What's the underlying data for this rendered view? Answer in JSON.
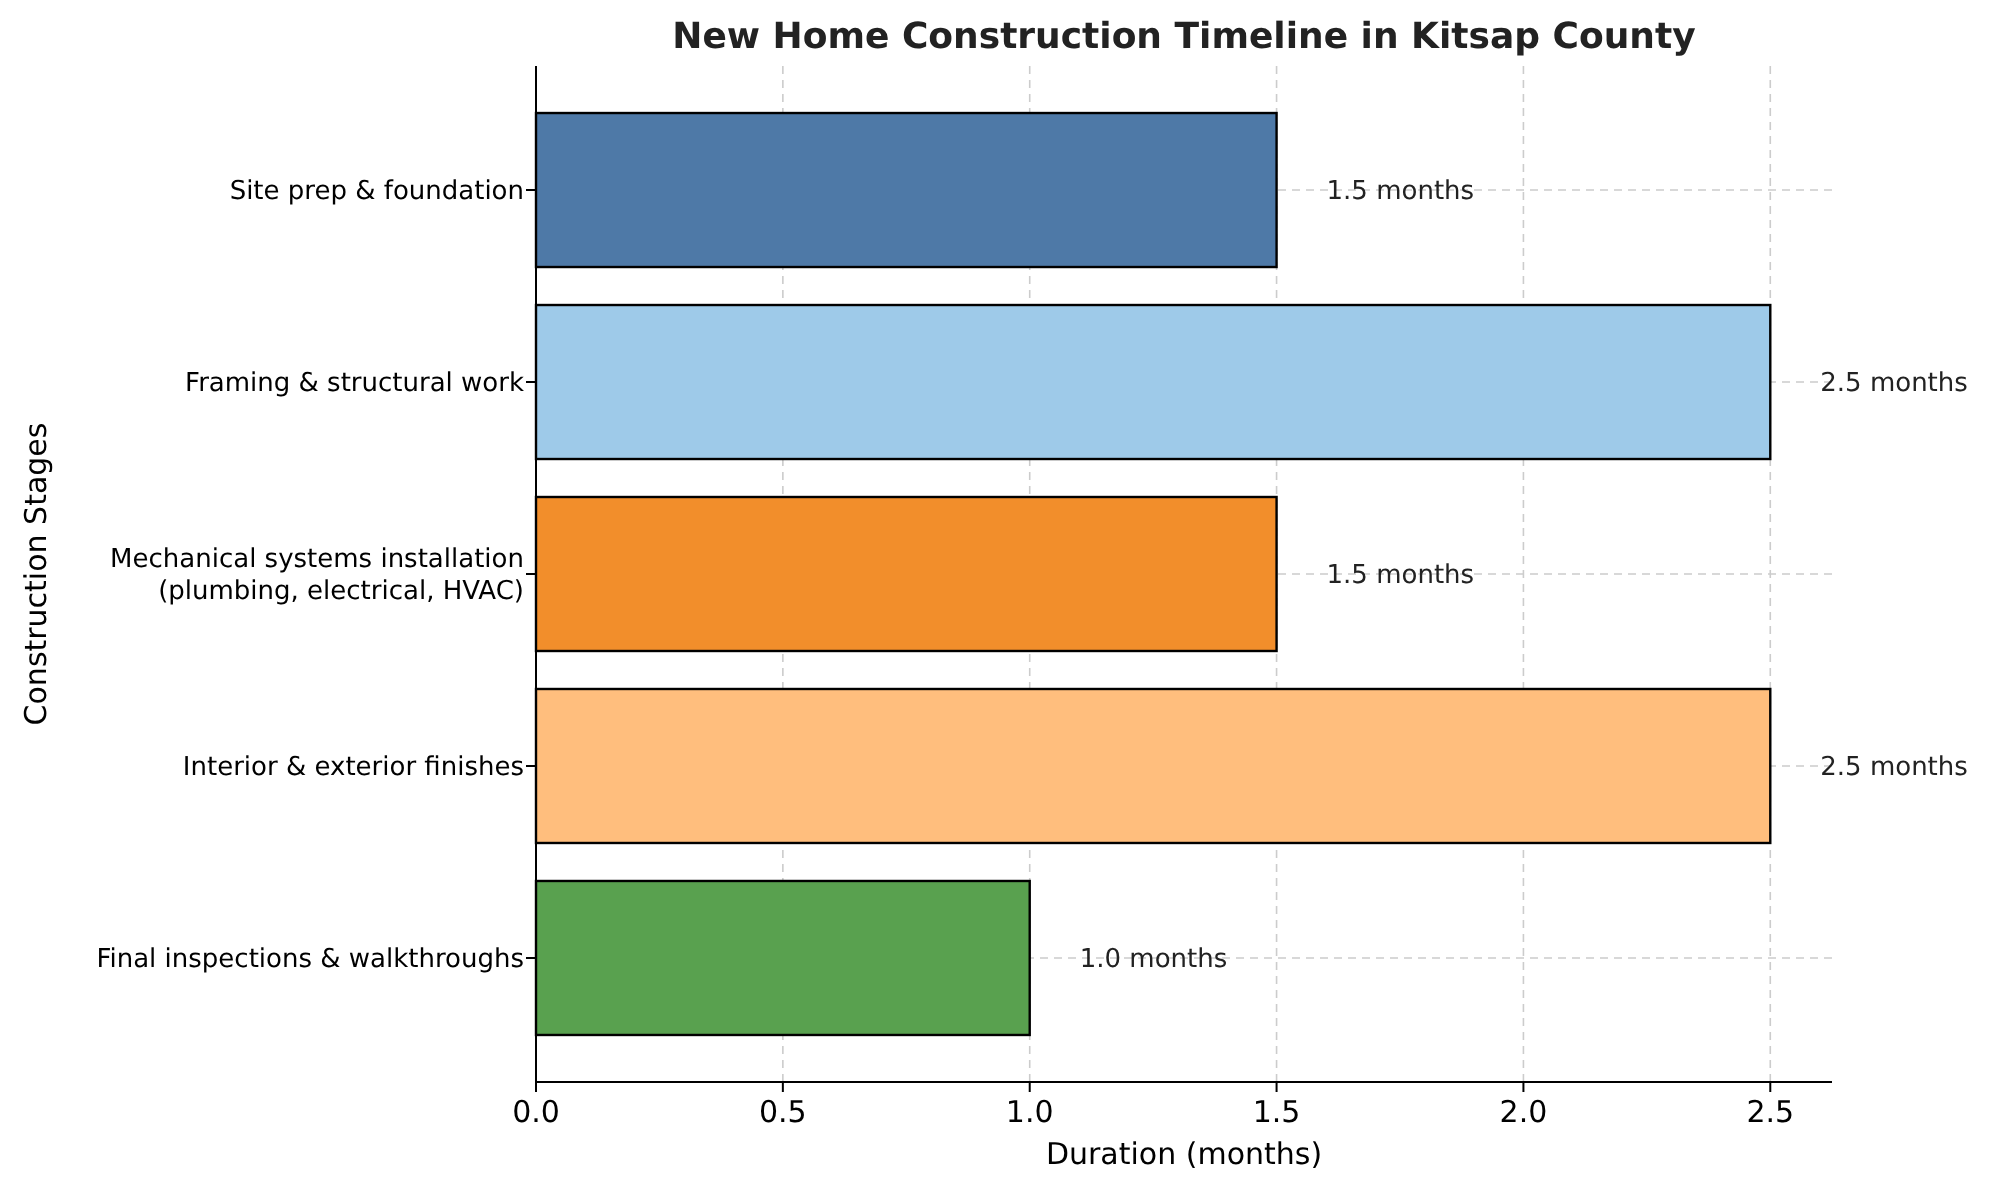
{
  "chart_data": {
    "type": "bar",
    "orientation": "horizontal",
    "title": "New Home Construction Timeline in Kitsap County",
    "xlabel": "Duration (months)",
    "ylabel": "Construction Stages",
    "categories": [
      "Site prep & foundation",
      "Framing & structural work",
      "Mechanical systems installation\n(plumbing, electrical, HVAC)",
      "Interior & exterior finishes",
      "Final inspections & walkthroughs"
    ],
    "values": [
      1.5,
      2.5,
      1.5,
      2.5,
      1.0
    ],
    "colors": [
      "#4e79a7",
      "#9ecae9",
      "#f28e2b",
      "#ffbe7d",
      "#59a14f"
    ],
    "value_labels": [
      "1.5 months",
      "2.5 months",
      "1.5 months",
      "2.5 months",
      "1.0 months"
    ],
    "xlim": [
      0,
      2.625
    ],
    "xticks": [
      {
        "value": 0,
        "label": "0.0"
      },
      {
        "value": 0.5,
        "label": "0.5"
      },
      {
        "value": 1,
        "label": "1.0"
      },
      {
        "value": 1.5,
        "label": "1.5"
      },
      {
        "value": 2,
        "label": "2.0"
      },
      {
        "value": 2.5,
        "label": "2.5"
      }
    ],
    "grid": true
  }
}
